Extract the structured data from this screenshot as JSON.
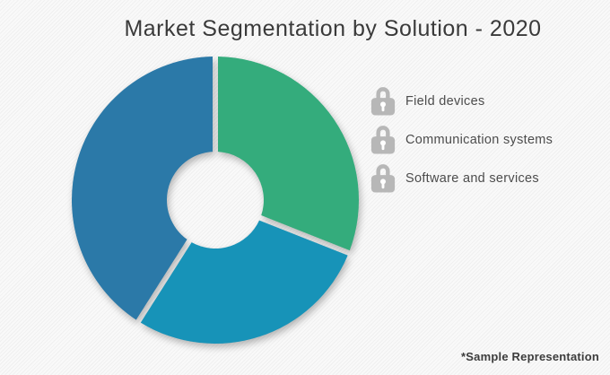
{
  "title": "Market Segmentation by Solution - 2020",
  "footnote": "*Sample Representation",
  "legend": {
    "position": "right",
    "items": [
      {
        "icon": "lock-icon",
        "label": "Field devices"
      },
      {
        "icon": "lock-icon",
        "label": "Communication systems"
      },
      {
        "icon": "lock-icon",
        "label": "Software and services"
      }
    ]
  },
  "colors": {
    "title_text": "#3a3a3a",
    "legend_text": "#4c4c4c",
    "lock_icon": "#b7b7b7",
    "background": "#f7f7f7"
  },
  "chart_data": {
    "type": "pie",
    "subtype": "donut",
    "title": "Market Segmentation by Solution - 2020",
    "categories": [
      "Field devices",
      "Communication systems",
      "Software and services"
    ],
    "values": [
      31,
      28,
      41
    ],
    "values_note": "percent share, estimated from arc angles (no data labels shown)",
    "colors": [
      "#34ac7c",
      "#1793b8",
      "#2b79a8"
    ],
    "start_angle_deg": 0,
    "direction": "clockwise",
    "inner_radius_ratio": 0.34,
    "segment_gap": true,
    "legend_position": "right",
    "data_labels": false,
    "footnote": "*Sample Representation"
  }
}
